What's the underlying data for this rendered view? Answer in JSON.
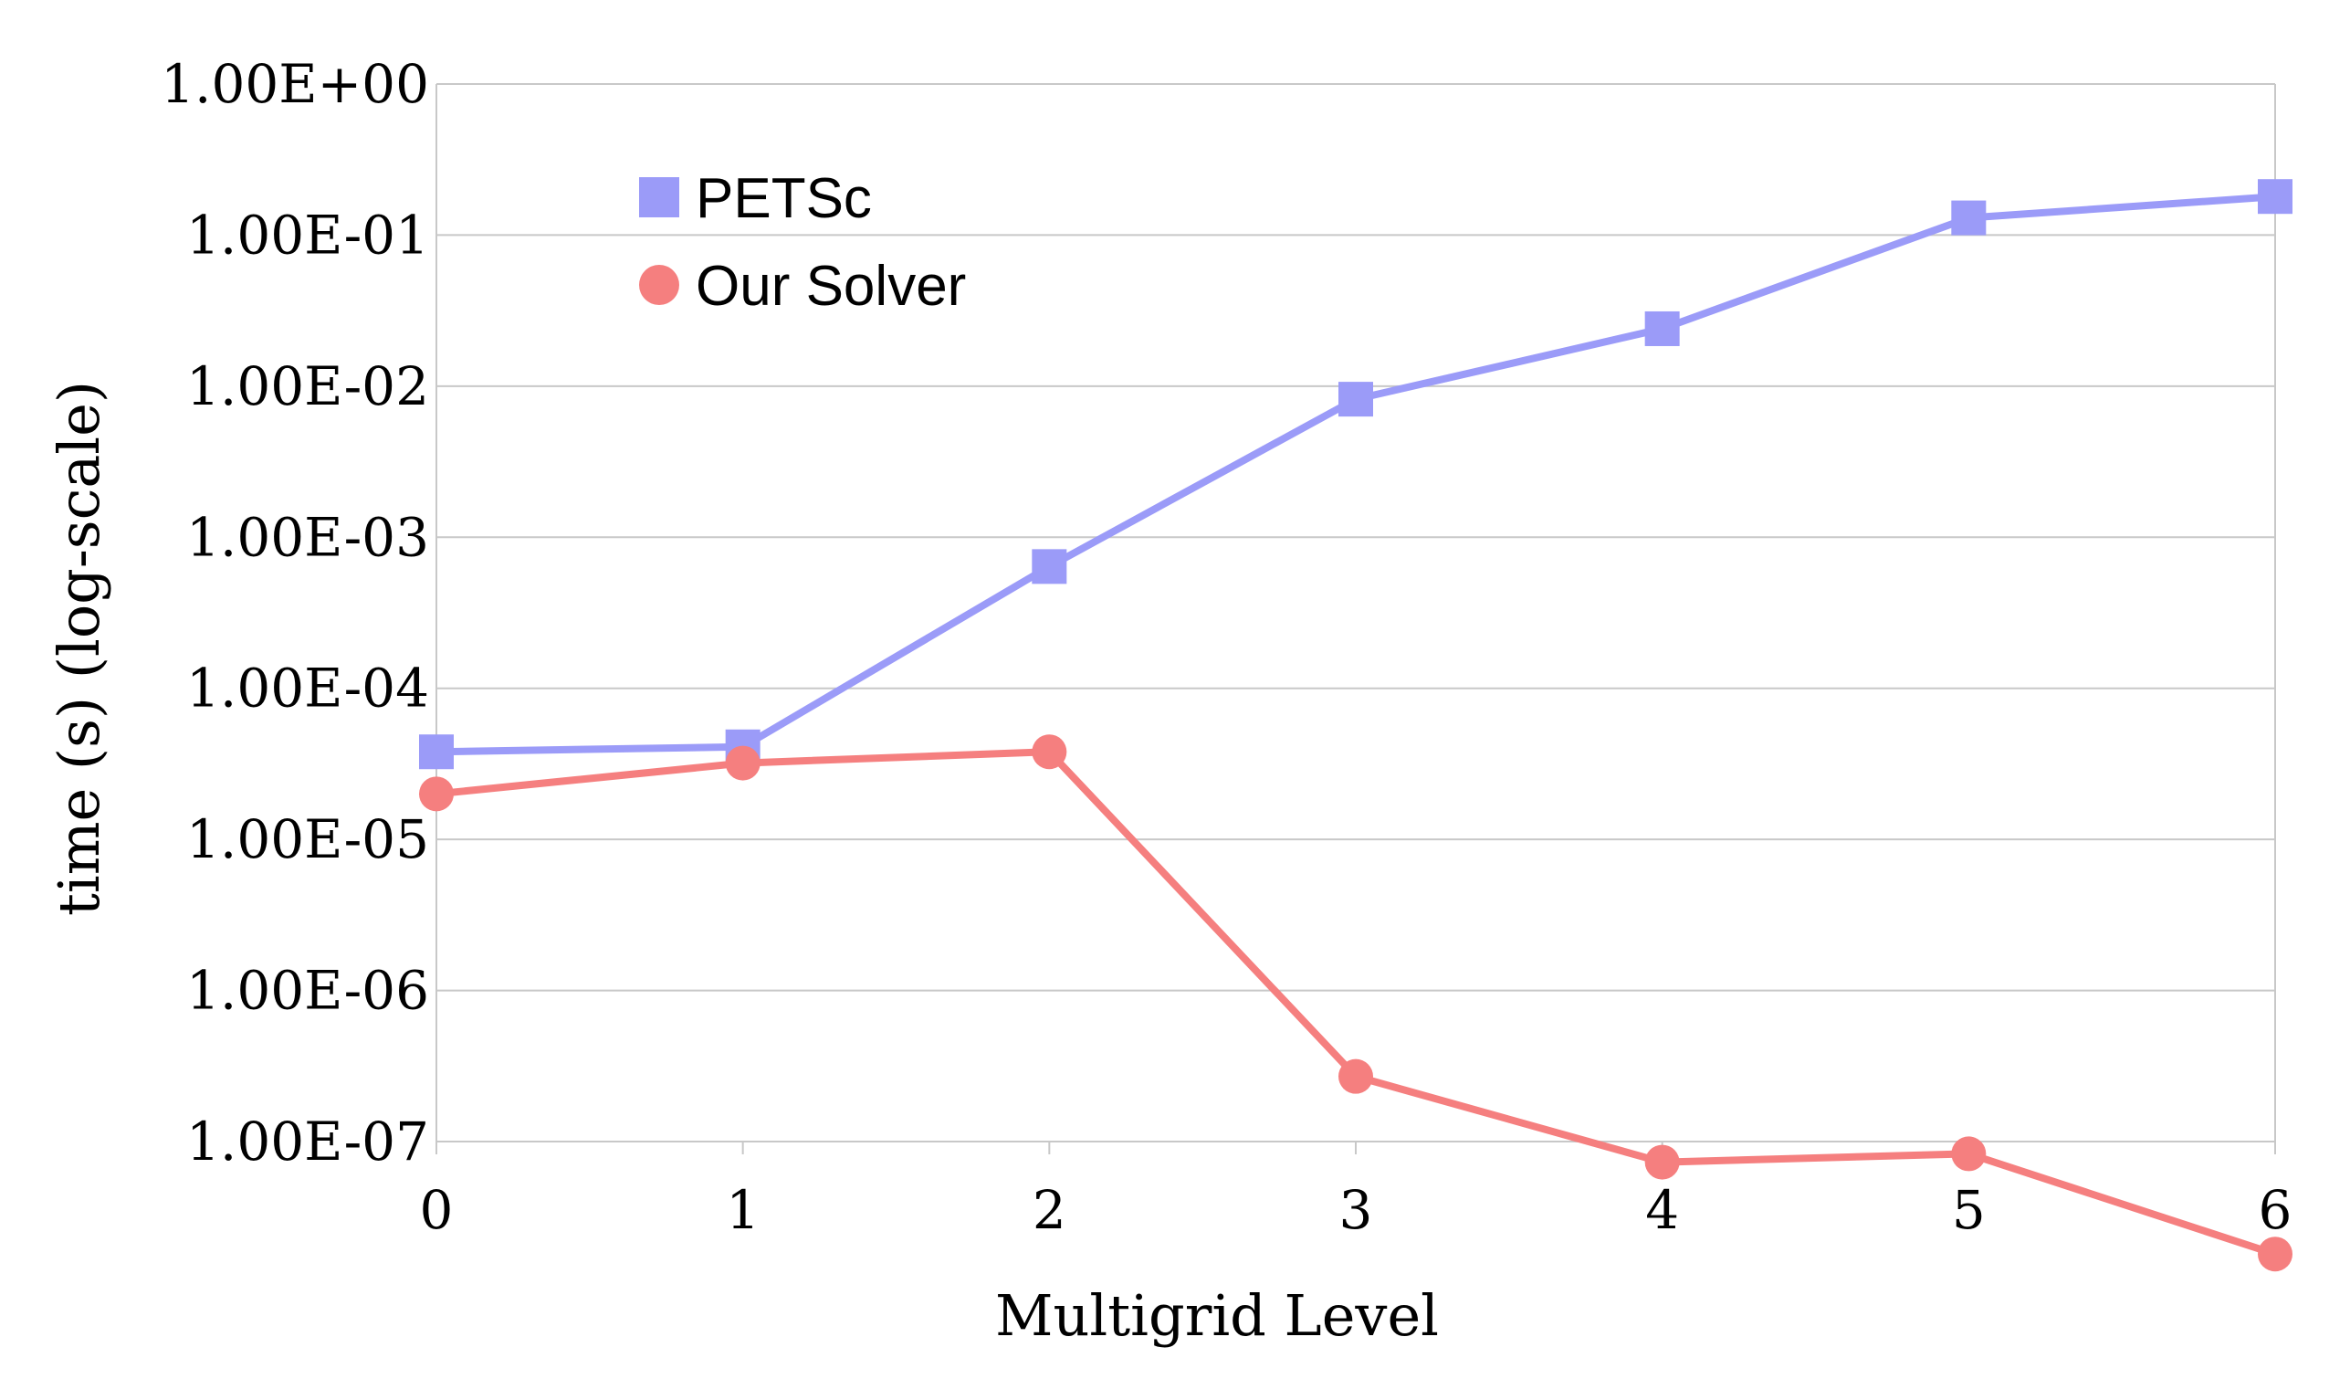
{
  "chart_data": {
    "type": "line",
    "xlabel": "Multigrid Level",
    "ylabel": "time (s) (log-scale)",
    "x": [
      0,
      1,
      2,
      3,
      4,
      5,
      6
    ],
    "xticks": [
      "0",
      "1",
      "2",
      "3",
      "4",
      "5",
      "6"
    ],
    "yscale": "log",
    "ylim": [
      1e-07,
      1
    ],
    "yticks": [
      1,
      0.1,
      0.01,
      0.001,
      0.0001,
      1e-05,
      1e-06,
      1e-07
    ],
    "ytick_labels": [
      "1.00E+00",
      "1.00E-01",
      "1.00E-02",
      "1.00E-03",
      "1.00E-04",
      "1.00E-05",
      "1.00E-06",
      "1.00E-07"
    ],
    "grid": true,
    "legend_position": "top-left",
    "series": [
      {
        "name": "PETSc",
        "marker": "square",
        "color": "#9b9bf8",
        "values": [
          3.8e-05,
          4.1e-05,
          0.00064,
          0.0082,
          0.024,
          0.13,
          0.18
        ]
      },
      {
        "name": "Our Solver",
        "marker": "circle",
        "color": "#f57f7f",
        "values": [
          2e-05,
          3.2e-05,
          3.8e-05,
          2.7e-07,
          7.3e-08,
          8.3e-08,
          1.8e-08
        ]
      }
    ]
  }
}
